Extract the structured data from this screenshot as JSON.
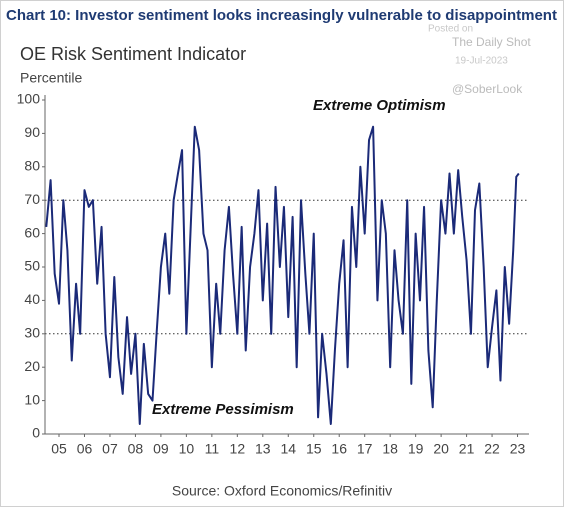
{
  "chart_data": {
    "type": "line",
    "title": "Chart 10: Investor sentiment looks increasingly vulnerable to disappointment",
    "subtitle": "OE Risk Sentiment Indicator",
    "y_label": "Percentile",
    "annotations": [
      "Extreme Optimism",
      "Extreme Pessimism"
    ],
    "source": "Source: Oxford Economics/Refinitiv",
    "watermark": [
      "Posted on",
      "The Daily Shot",
      "19-Jul-2023",
      "@SoberLook"
    ],
    "x": [
      2005.0,
      2005.17,
      2005.33,
      2005.5,
      2005.67,
      2005.83,
      2006.0,
      2006.17,
      2006.33,
      2006.5,
      2006.67,
      2006.83,
      2007.0,
      2007.17,
      2007.33,
      2007.5,
      2007.67,
      2007.83,
      2008.0,
      2008.17,
      2008.33,
      2008.5,
      2008.67,
      2008.83,
      2009.0,
      2009.17,
      2009.33,
      2009.5,
      2009.67,
      2009.83,
      2010.0,
      2010.17,
      2010.33,
      2010.5,
      2010.67,
      2010.83,
      2011.0,
      2011.17,
      2011.33,
      2011.5,
      2011.67,
      2011.83,
      2012.0,
      2012.17,
      2012.33,
      2012.5,
      2012.67,
      2012.83,
      2013.0,
      2013.17,
      2013.33,
      2013.5,
      2013.67,
      2013.83,
      2014.0,
      2014.17,
      2014.33,
      2014.5,
      2014.67,
      2014.83,
      2015.0,
      2015.17,
      2015.33,
      2015.5,
      2015.67,
      2015.83,
      2016.0,
      2016.17,
      2016.33,
      2016.5,
      2016.67,
      2016.83,
      2017.0,
      2017.17,
      2017.33,
      2017.5,
      2017.67,
      2017.83,
      2018.0,
      2018.17,
      2018.33,
      2018.5,
      2018.67,
      2018.83,
      2019.0,
      2019.17,
      2019.33,
      2019.5,
      2019.67,
      2019.83,
      2020.0,
      2020.17,
      2020.33,
      2020.5,
      2020.67,
      2020.83,
      2021.0,
      2021.17,
      2021.33,
      2021.5,
      2021.67,
      2021.83,
      2022.0,
      2022.17,
      2022.33,
      2022.5,
      2022.67,
      2022.83,
      2023.0,
      2023.17,
      2023.33,
      2023.45,
      2023.55
    ],
    "series": [
      {
        "name": "OE Risk Sentiment Indicator",
        "color": "#1b2a78",
        "values": [
          62,
          76,
          48,
          39,
          70,
          55,
          22,
          45,
          30,
          73,
          68,
          70,
          45,
          62,
          30,
          17,
          47,
          23,
          12,
          35,
          18,
          30,
          3,
          27,
          12,
          10,
          30,
          50,
          60,
          42,
          70,
          78,
          85,
          30,
          62,
          92,
          85,
          60,
          55,
          20,
          45,
          30,
          55,
          68,
          48,
          30,
          62,
          25,
          50,
          60,
          73,
          40,
          63,
          30,
          74,
          50,
          68,
          35,
          65,
          20,
          70,
          48,
          30,
          60,
          5,
          30,
          18,
          3,
          25,
          45,
          58,
          20,
          68,
          50,
          80,
          60,
          88,
          92,
          40,
          70,
          60,
          20,
          55,
          40,
          30,
          70,
          15,
          60,
          40,
          68,
          25,
          8,
          40,
          70,
          60,
          78,
          60,
          79,
          65,
          52,
          30,
          67,
          75,
          50,
          20,
          32,
          43,
          16,
          50,
          33,
          55,
          77,
          78
        ]
      }
    ],
    "reference_lines": [
      70,
      30
    ],
    "xlim": [
      2004.95,
      2023.95
    ],
    "xticks": [
      {
        "value": 2005.5,
        "label": "05"
      },
      {
        "value": 2006.5,
        "label": "06"
      },
      {
        "value": 2007.5,
        "label": "07"
      },
      {
        "value": 2008.5,
        "label": "08"
      },
      {
        "value": 2009.5,
        "label": "09"
      },
      {
        "value": 2010.5,
        "label": "10"
      },
      {
        "value": 2011.5,
        "label": "11"
      },
      {
        "value": 2012.5,
        "label": "12"
      },
      {
        "value": 2013.5,
        "label": "13"
      },
      {
        "value": 2014.5,
        "label": "14"
      },
      {
        "value": 2015.5,
        "label": "15"
      },
      {
        "value": 2016.5,
        "label": "16"
      },
      {
        "value": 2017.5,
        "label": "17"
      },
      {
        "value": 2018.5,
        "label": "18"
      },
      {
        "value": 2019.5,
        "label": "19"
      },
      {
        "value": 2020.5,
        "label": "20"
      },
      {
        "value": 2021.5,
        "label": "21"
      },
      {
        "value": 2022.5,
        "label": "22"
      },
      {
        "value": 2023.5,
        "label": "23"
      }
    ],
    "ylim": [
      0,
      100
    ],
    "yticks": [
      0,
      10,
      20,
      30,
      40,
      50,
      60,
      70,
      80,
      90,
      100
    ]
  }
}
